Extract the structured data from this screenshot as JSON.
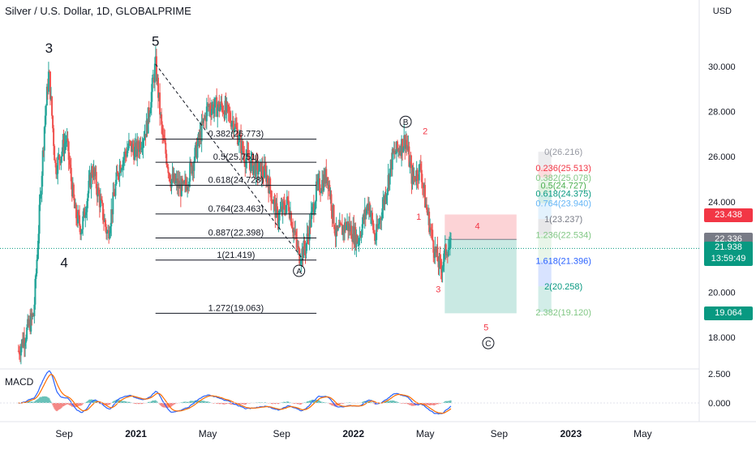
{
  "header": {
    "title": "Silver / U.S. Dollar, 1D, GLOBALPRIME",
    "currency": "USD"
  },
  "price_axis": {
    "ticks": [
      "30.000",
      "28.000",
      "26.000",
      "24.000",
      "22.000",
      "20.000",
      "18.000"
    ],
    "tick_values": [
      30,
      28,
      26,
      24,
      22,
      20,
      18
    ],
    "tags": [
      {
        "text": "23.438",
        "value": 23.438,
        "color": "#f23645"
      },
      {
        "text": "22.336",
        "value": 22.336,
        "color": "#787b86"
      },
      {
        "text": "21.938",
        "value": 21.938,
        "color": "#089981",
        "sub": "13:59:49"
      },
      {
        "text": "19.064",
        "value": 19.064,
        "color": "#089981"
      }
    ]
  },
  "macd_panel": {
    "label": "MACD",
    "ticks": [
      "2.500",
      "0.000"
    ],
    "tick_values": [
      2.5,
      0
    ]
  },
  "time_axis": {
    "labels": [
      "Sep",
      "2021",
      "May",
      "Sep",
      "2022",
      "May",
      "Sep",
      "2023",
      "May"
    ],
    "bold": [
      false,
      true,
      false,
      false,
      true,
      false,
      false,
      true,
      false
    ]
  },
  "chart_data": {
    "type": "candlestick",
    "title": "Silver / U.S. Dollar, 1D, GLOBALPRIME",
    "ylim": [
      16.8,
      32.2
    ],
    "xlabels": [
      "Sep",
      "2021",
      "May",
      "Sep",
      "2022",
      "May",
      "Sep",
      "2023",
      "May"
    ],
    "price_path": [
      [
        2020.46,
        17.4
      ],
      [
        2020.53,
        19.0
      ],
      [
        2020.58,
        27.5
      ],
      [
        2020.6,
        29.8
      ],
      [
        2020.63,
        25.5
      ],
      [
        2020.68,
        26.8
      ],
      [
        2020.72,
        23.5
      ],
      [
        2020.75,
        22.8
      ],
      [
        2020.8,
        25.5
      ],
      [
        2020.87,
        22.5
      ],
      [
        2020.92,
        25.5
      ],
      [
        2020.97,
        26.5
      ],
      [
        2021.0,
        26.2
      ],
      [
        2021.05,
        27.3
      ],
      [
        2021.09,
        30.1
      ],
      [
        2021.12,
        27.0
      ],
      [
        2021.16,
        25.0
      ],
      [
        2021.22,
        24.5
      ],
      [
        2021.27,
        26.0
      ],
      [
        2021.33,
        28.2
      ],
      [
        2021.4,
        28.2
      ],
      [
        2021.45,
        27.5
      ],
      [
        2021.5,
        26.0
      ],
      [
        2021.55,
        25.5
      ],
      [
        2021.6,
        25.2
      ],
      [
        2021.65,
        23.3
      ],
      [
        2021.7,
        24.0
      ],
      [
        2021.72,
        23.0
      ],
      [
        2021.75,
        21.6
      ],
      [
        2021.78,
        22.0
      ],
      [
        2021.83,
        24.5
      ],
      [
        2021.88,
        25.2
      ],
      [
        2021.92,
        22.5
      ],
      [
        2021.97,
        23.0
      ],
      [
        2022.02,
        22.3
      ],
      [
        2022.07,
        24.0
      ],
      [
        2022.1,
        22.3
      ],
      [
        2022.15,
        24.5
      ],
      [
        2022.18,
        26.0
      ],
      [
        2022.22,
        26.5
      ],
      [
        2022.24,
        26.8
      ],
      [
        2022.27,
        25.0
      ],
      [
        2022.31,
        25.5
      ],
      [
        2022.33,
        24.0
      ],
      [
        2022.37,
        22.0
      ],
      [
        2022.4,
        21.0
      ],
      [
        2022.43,
        22.0
      ],
      [
        2022.45,
        21.94
      ]
    ],
    "fib_left": [
      {
        "label": "0.382(26.773)",
        "value": 26.773
      },
      {
        "label": "0.5(25.751)",
        "value": 25.751
      },
      {
        "label": "0.618(24.728)",
        "value": 24.728
      },
      {
        "label": "0.764(23.463)",
        "value": 23.463
      },
      {
        "label": "0.887(22.398)",
        "value": 22.398
      },
      {
        "label": "1(21.419)",
        "value": 21.419
      },
      {
        "label": "1.272(19.063)",
        "value": 19.063
      }
    ],
    "fib_right": [
      {
        "label": "0(26.216)",
        "value": 26.216,
        "color": "#9598a1"
      },
      {
        "label": "0.236(25.513)",
        "value": 25.513,
        "color": "#f23645"
      },
      {
        "label": "0.382(25.078)",
        "value": 25.078,
        "color": "#81c784"
      },
      {
        "label": "0.5(24.727)",
        "value": 24.727,
        "color": "#4caf50"
      },
      {
        "label": "0.618(24.375)",
        "value": 24.375,
        "color": "#089981"
      },
      {
        "label": "0.764(23.940)",
        "value": 23.94,
        "color": "#64b5f6"
      },
      {
        "label": "1(23.237)",
        "value": 23.237,
        "color": "#787b86"
      },
      {
        "label": "1.236(22.534)",
        "value": 22.534,
        "color": "#81c784"
      },
      {
        "label": "1.618(21.396)",
        "value": 21.396,
        "color": "#2962ff"
      },
      {
        "label": "2(20.258)",
        "value": 20.258,
        "color": "#089981"
      },
      {
        "label": "2.382(19.120)",
        "value": 19.12,
        "color": "#81c784"
      }
    ],
    "wave_labels": [
      {
        "text": "3",
        "t": 2020.6,
        "v": 30.6,
        "color": "#131722",
        "size": 17
      },
      {
        "text": "4",
        "t": 2020.67,
        "v": 21.1,
        "color": "#131722",
        "size": 17
      },
      {
        "text": "5",
        "t": 2021.09,
        "v": 30.9,
        "color": "#131722",
        "size": 17
      },
      {
        "text": "A",
        "t": 2021.75,
        "v": 20.8,
        "color": "#131722",
        "size": 10,
        "circle": true
      },
      {
        "text": "B",
        "t": 2022.24,
        "v": 27.4,
        "color": "#131722",
        "size": 10,
        "circle": true
      },
      {
        "text": "2",
        "t": 2022.33,
        "v": 27.0,
        "color": "#f23645",
        "size": 11
      },
      {
        "text": "1",
        "t": 2022.3,
        "v": 23.2,
        "color": "#f23645",
        "size": 11
      },
      {
        "text": "3",
        "t": 2022.39,
        "v": 20.0,
        "color": "#f23645",
        "size": 11
      },
      {
        "text": "4",
        "t": 2022.57,
        "v": 22.8,
        "color": "#f23645",
        "size": 11
      },
      {
        "text": "5",
        "t": 2022.61,
        "v": 18.3,
        "color": "#f23645",
        "size": 11
      },
      {
        "text": "C",
        "t": 2022.62,
        "v": 17.6,
        "color": "#131722",
        "size": 10,
        "circle": true
      }
    ],
    "position_box": {
      "entry": 22.336,
      "stop": 23.438,
      "target": 19.064,
      "t_start": 2022.42,
      "t_end": 2022.75
    },
    "last_price": 21.938
  }
}
